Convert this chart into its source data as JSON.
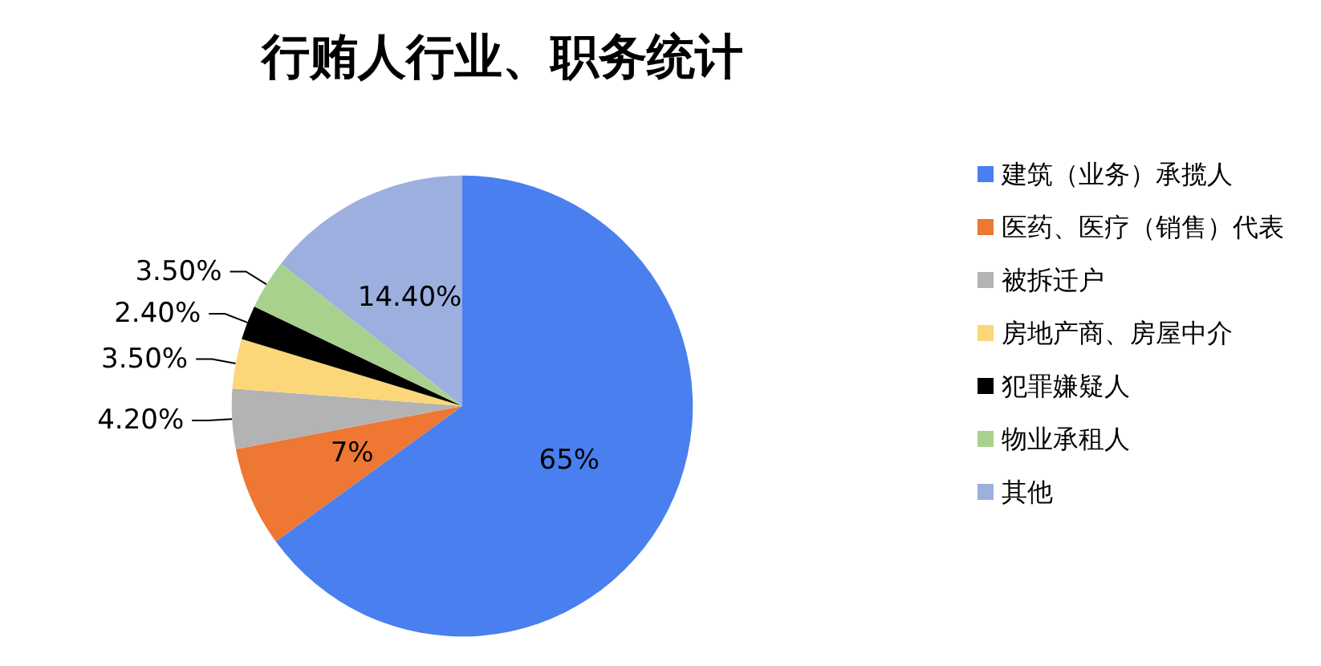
{
  "chart_data": {
    "type": "pie",
    "title": "行贿人行业、职务统计",
    "categories": [
      "建筑（业务）承揽人",
      "医药、医疗（销售）代表",
      "被拆迁户",
      "房地产商、房屋中介",
      "犯罪嫌疑人",
      "物业承租人",
      "其他"
    ],
    "values": [
      65,
      7,
      4.2,
      3.5,
      2.4,
      3.5,
      14.4
    ],
    "value_labels": [
      "65%",
      "7%",
      "4.20%",
      "3.50%",
      "2.40%",
      "3.50%",
      "14.40%"
    ],
    "colors": [
      "#4a7fef",
      "#ee7733",
      "#b3b3b3",
      "#fbd77a",
      "#000000",
      "#a9d18e",
      "#9dafdf"
    ],
    "legend": "right"
  }
}
